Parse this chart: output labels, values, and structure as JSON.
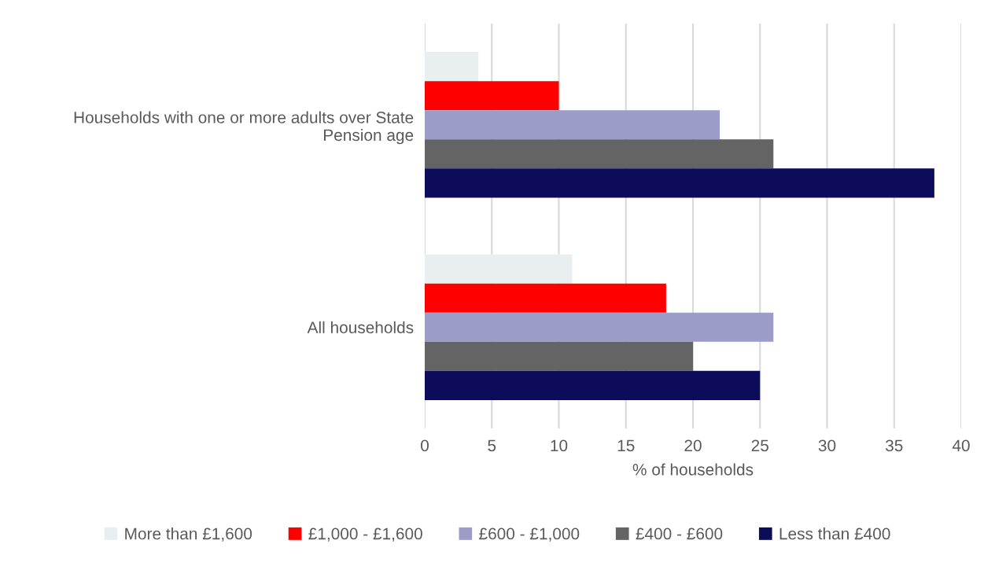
{
  "chart_data": {
    "type": "bar",
    "orientation": "horizontal",
    "xlabel": "% of households",
    "categories": [
      "Households with one or more adults over State\nPension age",
      "All households"
    ],
    "series": [
      {
        "name": "More than £1,600",
        "color": "#e9eef0",
        "values": [
          4,
          11
        ]
      },
      {
        "name": "£1,000 - £1,600",
        "color": "#ff0000",
        "values": [
          10,
          18
        ]
      },
      {
        "name": "£600 - £1,000",
        "color": "#9b9dc8",
        "values": [
          22,
          26
        ]
      },
      {
        "name": "£400 - £600",
        "color": "#646464",
        "values": [
          26,
          20
        ]
      },
      {
        "name": "Less than £400",
        "color": "#0c0c5a",
        "values": [
          38,
          25
        ]
      }
    ],
    "xlim": [
      0,
      40
    ],
    "xticks": [
      0,
      5,
      10,
      15,
      20,
      25,
      30,
      35,
      40
    ],
    "grid": "x",
    "legend": "bottom"
  }
}
